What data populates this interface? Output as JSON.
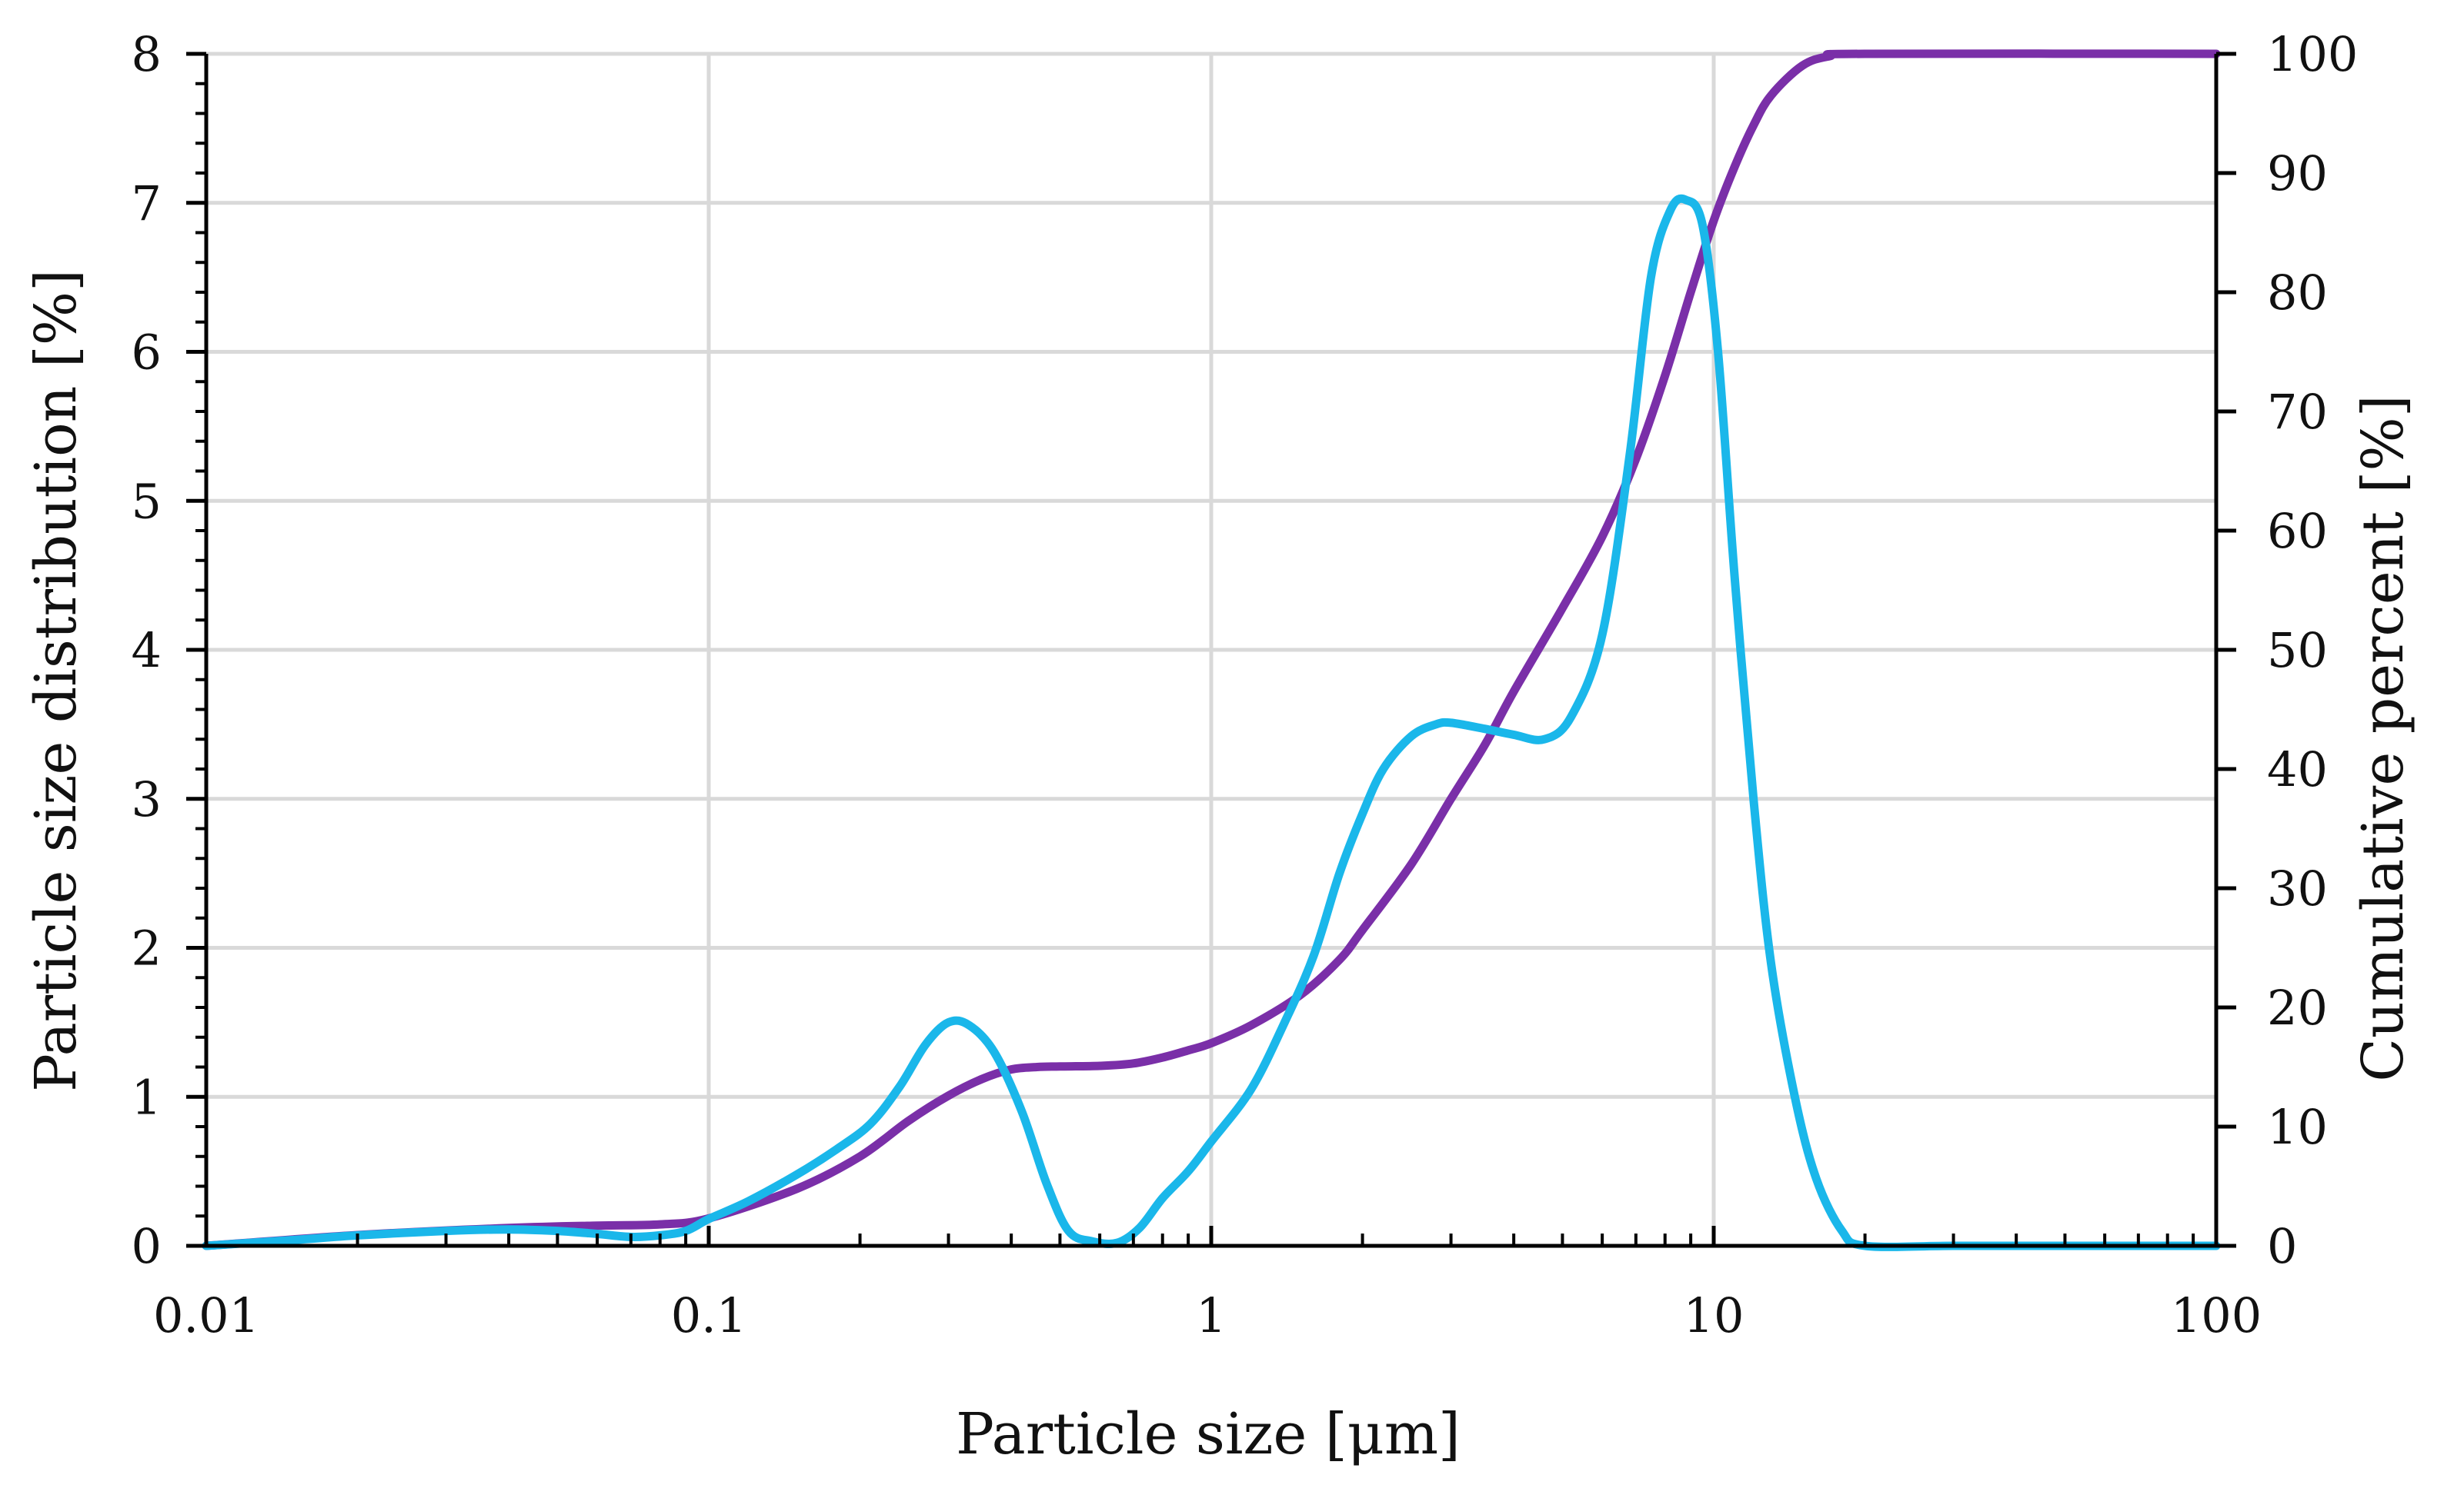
{
  "chart_data": {
    "type": "line",
    "xscale": "log",
    "xlim": [
      0.01,
      100
    ],
    "ylim_left": [
      0,
      8
    ],
    "ylim_right": [
      0,
      100
    ],
    "xlabel": "Particle size [μm]",
    "ylabel_left": "Particle size distribution [%]",
    "ylabel_right": "Cumulative percent [%]",
    "x_ticks": [
      {
        "value": 0.01,
        "label": "0.01"
      },
      {
        "value": 0.1,
        "label": "0.1"
      },
      {
        "value": 1,
        "label": "1"
      },
      {
        "value": 10,
        "label": "10"
      },
      {
        "value": 100,
        "label": "100"
      }
    ],
    "y_left_ticks": [
      {
        "value": 0,
        "label": "0"
      },
      {
        "value": 1,
        "label": "1"
      },
      {
        "value": 2,
        "label": "2"
      },
      {
        "value": 3,
        "label": "3"
      },
      {
        "value": 4,
        "label": "4"
      },
      {
        "value": 5,
        "label": "5"
      },
      {
        "value": 6,
        "label": "6"
      },
      {
        "value": 7,
        "label": "7"
      },
      {
        "value": 8,
        "label": "8"
      }
    ],
    "y_right_ticks": [
      {
        "value": 0,
        "label": "0"
      },
      {
        "value": 10,
        "label": "10"
      },
      {
        "value": 20,
        "label": "20"
      },
      {
        "value": 30,
        "label": "30"
      },
      {
        "value": 40,
        "label": "40"
      },
      {
        "value": 50,
        "label": "50"
      },
      {
        "value": 60,
        "label": "60"
      },
      {
        "value": 70,
        "label": "70"
      },
      {
        "value": 80,
        "label": "80"
      },
      {
        "value": 90,
        "label": "90"
      },
      {
        "value": 100,
        "label": "100"
      }
    ],
    "grid": true,
    "series": [
      {
        "name": "Particle size distribution",
        "axis": "left",
        "color": "#1ab7ea",
        "points": [
          [
            0.01,
            0.0
          ],
          [
            0.015,
            0.04
          ],
          [
            0.02,
            0.07
          ],
          [
            0.03,
            0.1
          ],
          [
            0.04,
            0.11
          ],
          [
            0.05,
            0.1
          ],
          [
            0.06,
            0.08
          ],
          [
            0.07,
            0.06
          ],
          [
            0.08,
            0.07
          ],
          [
            0.09,
            0.1
          ],
          [
            0.1,
            0.18
          ],
          [
            0.12,
            0.3
          ],
          [
            0.15,
            0.48
          ],
          [
            0.18,
            0.65
          ],
          [
            0.21,
            0.82
          ],
          [
            0.24,
            1.07
          ],
          [
            0.27,
            1.35
          ],
          [
            0.3,
            1.5
          ],
          [
            0.33,
            1.48
          ],
          [
            0.37,
            1.3
          ],
          [
            0.42,
            0.9
          ],
          [
            0.47,
            0.42
          ],
          [
            0.52,
            0.1
          ],
          [
            0.58,
            0.03
          ],
          [
            0.65,
            0.02
          ],
          [
            0.72,
            0.12
          ],
          [
            0.8,
            0.32
          ],
          [
            0.9,
            0.5
          ],
          [
            1.0,
            0.7
          ],
          [
            1.2,
            1.05
          ],
          [
            1.4,
            1.5
          ],
          [
            1.6,
            1.95
          ],
          [
            1.8,
            2.5
          ],
          [
            2.0,
            2.9
          ],
          [
            2.2,
            3.2
          ],
          [
            2.5,
            3.42
          ],
          [
            2.8,
            3.5
          ],
          [
            3.0,
            3.51
          ],
          [
            3.5,
            3.47
          ],
          [
            4.0,
            3.43
          ],
          [
            4.6,
            3.4
          ],
          [
            5.2,
            3.55
          ],
          [
            6.0,
            4.1
          ],
          [
            6.8,
            5.3
          ],
          [
            7.5,
            6.5
          ],
          [
            8.2,
            6.95
          ],
          [
            8.8,
            7.02
          ],
          [
            9.5,
            6.85
          ],
          [
            10.2,
            6.0
          ],
          [
            11.0,
            4.5
          ],
          [
            12.0,
            3.0
          ],
          [
            13.0,
            1.9
          ],
          [
            14.5,
            1.0
          ],
          [
            16.0,
            0.45
          ],
          [
            18.0,
            0.1
          ],
          [
            20.0,
            0.0
          ],
          [
            30.0,
            0.0
          ],
          [
            50.0,
            0.0
          ],
          [
            100.0,
            0.0
          ]
        ]
      },
      {
        "name": "Cumulative percent",
        "axis": "right",
        "color": "#7a2fa8",
        "points": [
          [
            0.01,
            0.0
          ],
          [
            0.02,
            0.9
          ],
          [
            0.04,
            1.5
          ],
          [
            0.06,
            1.7
          ],
          [
            0.08,
            1.8
          ],
          [
            0.1,
            2.3
          ],
          [
            0.15,
            4.8
          ],
          [
            0.2,
            7.5
          ],
          [
            0.25,
            10.5
          ],
          [
            0.3,
            12.6
          ],
          [
            0.35,
            14.0
          ],
          [
            0.4,
            14.8
          ],
          [
            0.45,
            15.0
          ],
          [
            0.5,
            15.05
          ],
          [
            0.6,
            15.1
          ],
          [
            0.7,
            15.3
          ],
          [
            0.8,
            15.8
          ],
          [
            0.9,
            16.4
          ],
          [
            1.0,
            17.0
          ],
          [
            1.2,
            18.5
          ],
          [
            1.5,
            21.0
          ],
          [
            1.8,
            24.0
          ],
          [
            2.0,
            26.5
          ],
          [
            2.5,
            32.0
          ],
          [
            3.0,
            37.5
          ],
          [
            3.5,
            42.0
          ],
          [
            4.0,
            46.5
          ],
          [
            5.0,
            53.5
          ],
          [
            6.0,
            59.5
          ],
          [
            7.0,
            66.0
          ],
          [
            8.0,
            73.0
          ],
          [
            9.0,
            80.0
          ],
          [
            10.0,
            86.0
          ],
          [
            11.0,
            90.5
          ],
          [
            12.0,
            94.0
          ],
          [
            13.0,
            96.5
          ],
          [
            15.0,
            99.0
          ],
          [
            17.0,
            99.8
          ],
          [
            20.0,
            100.0
          ],
          [
            100.0,
            100.0
          ]
        ]
      }
    ]
  }
}
